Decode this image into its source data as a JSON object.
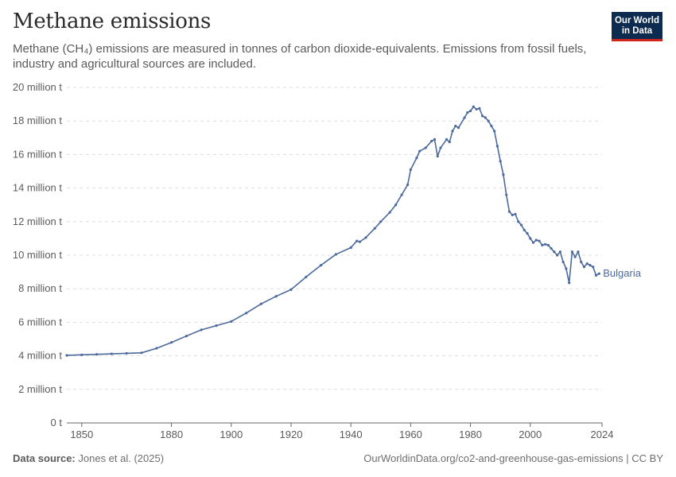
{
  "header": {
    "title": "Methane emissions",
    "subtitle": "Methane (CH₄) emissions are measured in tonnes of carbon dioxide-equivalents. Emissions from fossil fuels, industry and agricultural sources are included."
  },
  "logo": {
    "line1": "Our World",
    "line2": "in Data"
  },
  "footer": {
    "source_label": "Data source:",
    "source_value": "Jones et al. (2025)",
    "url": "OurWorldinData.org/co2-and-greenhouse-gas-emissions | CC BY"
  },
  "colors": {
    "series": "#4c6a9c",
    "grid": "#dddddd",
    "axis": "#666666",
    "text": "#5b5b5b"
  },
  "chart_data": {
    "type": "line",
    "xlabel": "",
    "ylabel": "",
    "xlim": [
      1845,
      2024
    ],
    "ylim": [
      0,
      20000000
    ],
    "x_ticks": [
      1850,
      1880,
      1900,
      1920,
      1940,
      1960,
      1980,
      2000,
      2024
    ],
    "y_ticks": [
      {
        "value": 0,
        "label": "0 t"
      },
      {
        "value": 2000000,
        "label": "2 million t"
      },
      {
        "value": 4000000,
        "label": "4 million t"
      },
      {
        "value": 6000000,
        "label": "6 million t"
      },
      {
        "value": 8000000,
        "label": "8 million t"
      },
      {
        "value": 10000000,
        "label": "10 million t"
      },
      {
        "value": 12000000,
        "label": "12 million t"
      },
      {
        "value": 14000000,
        "label": "14 million t"
      },
      {
        "value": 16000000,
        "label": "16 million t"
      },
      {
        "value": 18000000,
        "label": "18 million t"
      },
      {
        "value": 20000000,
        "label": "20 million t"
      }
    ],
    "grid": "horizontal dashed",
    "series": [
      {
        "name": "Bulgaria",
        "points": [
          [
            1845,
            4.03
          ],
          [
            1850,
            4.06
          ],
          [
            1855,
            4.09
          ],
          [
            1860,
            4.12
          ],
          [
            1865,
            4.15
          ],
          [
            1870,
            4.18
          ],
          [
            1875,
            4.45
          ],
          [
            1880,
            4.8
          ],
          [
            1885,
            5.18
          ],
          [
            1890,
            5.55
          ],
          [
            1895,
            5.8
          ],
          [
            1900,
            6.05
          ],
          [
            1905,
            6.55
          ],
          [
            1910,
            7.1
          ],
          [
            1915,
            7.55
          ],
          [
            1920,
            7.95
          ],
          [
            1925,
            8.7
          ],
          [
            1930,
            9.4
          ],
          [
            1935,
            10.05
          ],
          [
            1940,
            10.45
          ],
          [
            1942,
            10.85
          ],
          [
            1943,
            10.8
          ],
          [
            1945,
            11.05
          ],
          [
            1948,
            11.6
          ],
          [
            1950,
            12.0
          ],
          [
            1953,
            12.55
          ],
          [
            1955,
            13.0
          ],
          [
            1957,
            13.6
          ],
          [
            1959,
            14.2
          ],
          [
            1960,
            15.1
          ],
          [
            1962,
            15.8
          ],
          [
            1963,
            16.2
          ],
          [
            1965,
            16.4
          ],
          [
            1967,
            16.8
          ],
          [
            1968,
            16.9
          ],
          [
            1969,
            15.9
          ],
          [
            1970,
            16.4
          ],
          [
            1972,
            16.9
          ],
          [
            1973,
            16.75
          ],
          [
            1974,
            17.4
          ],
          [
            1975,
            17.7
          ],
          [
            1976,
            17.6
          ],
          [
            1978,
            18.2
          ],
          [
            1979,
            18.5
          ],
          [
            1980,
            18.6
          ],
          [
            1981,
            18.85
          ],
          [
            1982,
            18.7
          ],
          [
            1983,
            18.75
          ],
          [
            1984,
            18.3
          ],
          [
            1985,
            18.2
          ],
          [
            1986,
            18.0
          ],
          [
            1987,
            17.7
          ],
          [
            1988,
            17.4
          ],
          [
            1989,
            16.5
          ],
          [
            1990,
            15.6
          ],
          [
            1991,
            14.8
          ],
          [
            1992,
            13.6
          ],
          [
            1993,
            12.6
          ],
          [
            1994,
            12.4
          ],
          [
            1995,
            12.45
          ],
          [
            1996,
            12.0
          ],
          [
            1997,
            11.8
          ],
          [
            1998,
            11.5
          ],
          [
            1999,
            11.3
          ],
          [
            2000,
            11.0
          ],
          [
            2001,
            10.75
          ],
          [
            2002,
            10.9
          ],
          [
            2003,
            10.85
          ],
          [
            2004,
            10.6
          ],
          [
            2005,
            10.65
          ],
          [
            2006,
            10.6
          ],
          [
            2007,
            10.4
          ],
          [
            2008,
            10.2
          ],
          [
            2009,
            10.0
          ],
          [
            2010,
            10.2
          ],
          [
            2011,
            9.6
          ],
          [
            2012,
            9.2
          ],
          [
            2013,
            8.35
          ],
          [
            2014,
            10.2
          ],
          [
            2015,
            9.9
          ],
          [
            2016,
            10.2
          ],
          [
            2017,
            9.6
          ],
          [
            2018,
            9.3
          ],
          [
            2019,
            9.5
          ],
          [
            2020,
            9.4
          ],
          [
            2021,
            9.3
          ],
          [
            2022,
            8.8
          ],
          [
            2023,
            8.9
          ]
        ],
        "point_unit": "million t",
        "color": "#4c6a9c"
      }
    ]
  }
}
